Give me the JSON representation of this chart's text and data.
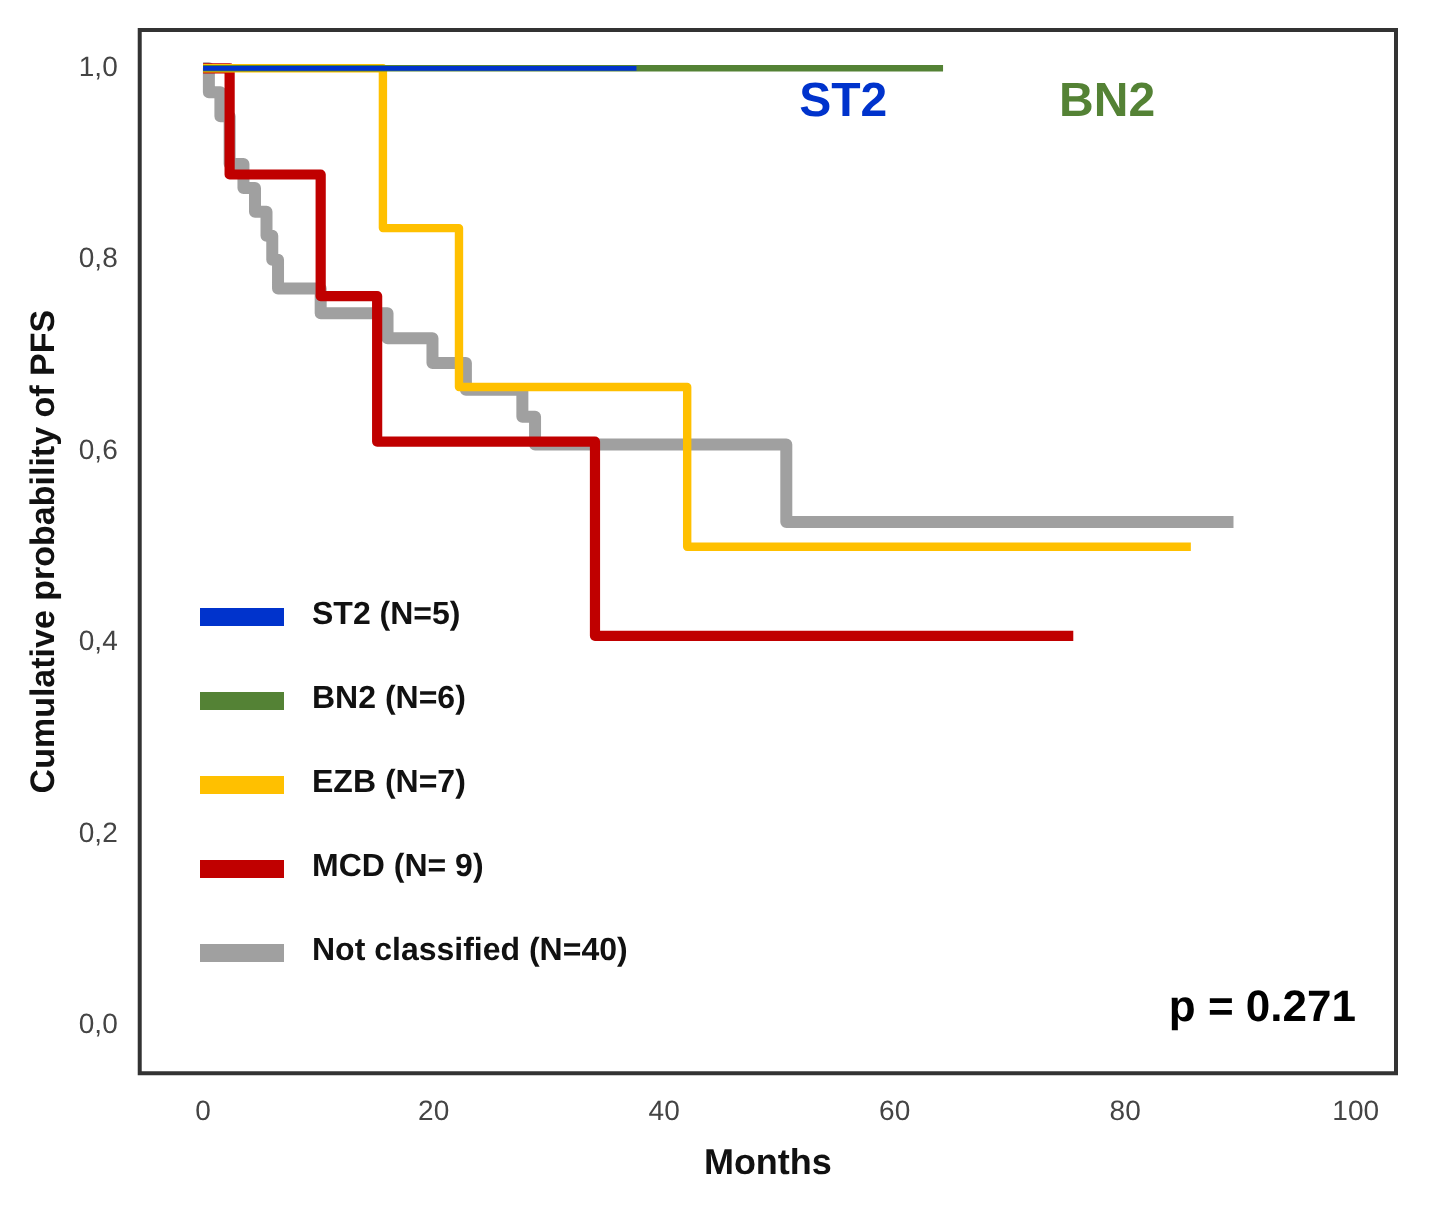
{
  "chart_data": {
    "type": "step",
    "xlabel": "Months",
    "ylabel": "Cumulative probability of PFS",
    "xlim": [
      -5.5,
      103.5
    ],
    "ylim": [
      -0.05,
      1.04
    ],
    "xticks": [
      0,
      20,
      40,
      60,
      80,
      100
    ],
    "yticks": [
      {
        "value": 0,
        "label": "0,0"
      },
      {
        "value": 0.2,
        "label": "0,2"
      },
      {
        "value": 0.4,
        "label": "0,4"
      },
      {
        "value": 0.6,
        "label": "0,6"
      },
      {
        "value": 0.8,
        "label": "0,8"
      },
      {
        "value": 1,
        "label": "1,0"
      }
    ],
    "grid": false,
    "legend": "bottom left",
    "marker": "none",
    "line_style": "solid",
    "series": [
      {
        "name": "ST2 (N=5)",
        "color": "#0033cc",
        "x": [
          0,
          37.6
        ],
        "values": [
          1,
          1
        ]
      },
      {
        "name": "BN2 (N=6)",
        "color": "#548235",
        "x": [
          0,
          64.2
        ],
        "values": [
          1,
          1
        ]
      },
      {
        "name": "EZB (N=7)",
        "color": "#ffc000",
        "x": [
          0,
          15.6,
          22.2,
          42,
          85.7
        ],
        "values": [
          1,
          0.833,
          0.667,
          0.5,
          0.5
        ]
      },
      {
        "name": "MCD (N= 9)",
        "color": "#c00000",
        "x": [
          0,
          2.3,
          10.2,
          15.1,
          34,
          75.5
        ],
        "values": [
          1,
          0.889,
          0.762,
          0.61,
          0.407,
          0.407
        ]
      },
      {
        "name": "Not classified (N=40)",
        "color": "#a0a0a0",
        "x": [
          0,
          0.5,
          1.5,
          2.3,
          3.5,
          4.5,
          5.5,
          6,
          6.5,
          10.2,
          16,
          19.9,
          22.8,
          27.7,
          28.8,
          50.6,
          89.4
        ],
        "values": [
          1,
          0.975,
          0.95,
          0.9,
          0.875,
          0.85,
          0.825,
          0.8,
          0.77,
          0.744,
          0.718,
          0.692,
          0.664,
          0.636,
          0.607,
          0.526,
          0.526
        ]
      }
    ],
    "annotations": [
      "ST2",
      "BN2",
      "p = 0.271"
    ]
  }
}
